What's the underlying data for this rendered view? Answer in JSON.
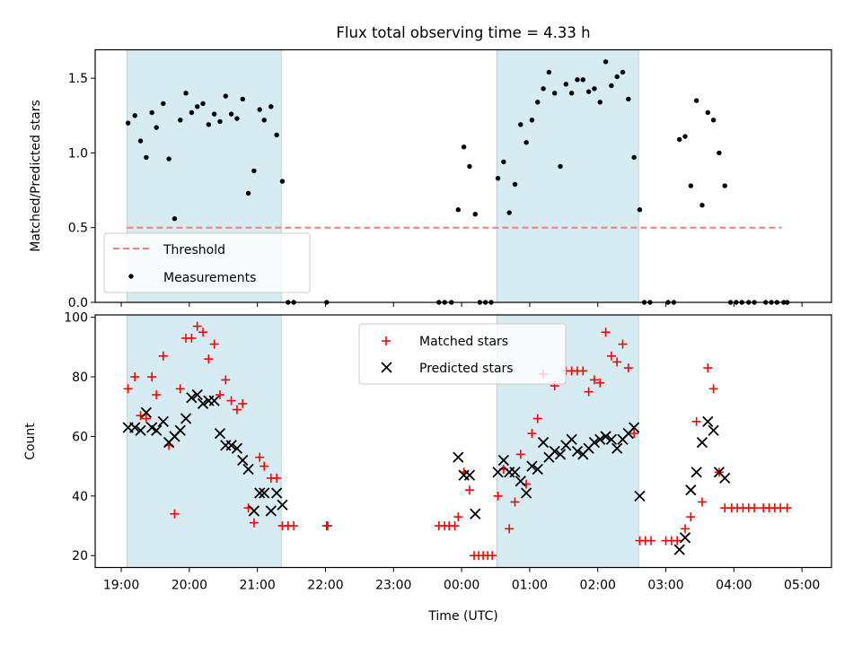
{
  "chart_data": [
    {
      "type": "scatter",
      "panel": "top",
      "title": "Flux total observing time = 4.33 h",
      "xlabel": "",
      "ylabel": "Matched/Predicted stars",
      "xlim": [
        "18:37",
        "05:26"
      ],
      "ylim": [
        0,
        1.69
      ],
      "yticks": [
        0.0,
        0.5,
        1.0,
        1.5
      ],
      "ytick_labels": [
        "0.0",
        "0.5",
        "1.0",
        "1.5"
      ],
      "xticks": [
        "19:00",
        "20:00",
        "21:00",
        "22:00",
        "23:00",
        "00:00",
        "01:00",
        "02:00",
        "03:00",
        "04:00",
        "05:00"
      ],
      "shaded_intervals": [
        [
          "19:05",
          "21:21"
        ],
        [
          "00:31",
          "02:36"
        ]
      ],
      "shade_color": "#add8e6",
      "legend_position": "lower-left",
      "threshold": {
        "name": "Threshold",
        "value": 0.5,
        "start": "19:05",
        "end": "04:42",
        "color": "#f08080"
      },
      "measurements": {
        "name": "Measurements",
        "color": "#000000",
        "points": [
          [
            "19:06",
            1.2
          ],
          [
            "19:12",
            1.25
          ],
          [
            "19:17",
            1.08
          ],
          [
            "19:22",
            0.97
          ],
          [
            "19:27",
            1.27
          ],
          [
            "19:31",
            1.17
          ],
          [
            "19:37",
            1.33
          ],
          [
            "19:42",
            0.96
          ],
          [
            "19:47",
            0.56
          ],
          [
            "19:52",
            1.22
          ],
          [
            "19:57",
            1.4
          ],
          [
            "20:02",
            1.27
          ],
          [
            "20:07",
            1.31
          ],
          [
            "20:12",
            1.33
          ],
          [
            "20:17",
            1.19
          ],
          [
            "20:22",
            1.26
          ],
          [
            "20:27",
            1.21
          ],
          [
            "20:32",
            1.38
          ],
          [
            "20:37",
            1.26
          ],
          [
            "20:42",
            1.23
          ],
          [
            "20:47",
            1.36
          ],
          [
            "20:52",
            0.73
          ],
          [
            "20:57",
            0.88
          ],
          [
            "21:02",
            1.29
          ],
          [
            "21:06",
            1.22
          ],
          [
            "21:12",
            1.31
          ],
          [
            "21:17",
            1.12
          ],
          [
            "21:22",
            0.81
          ],
          [
            "21:27",
            0.0
          ],
          [
            "21:32",
            0.0
          ],
          [
            "22:01",
            0.0
          ],
          [
            "23:40",
            0.0
          ],
          [
            "23:45",
            0.0
          ],
          [
            "23:51",
            0.0
          ],
          [
            "23:57",
            0.62
          ],
          [
            "00:02",
            1.04
          ],
          [
            "00:07",
            0.91
          ],
          [
            "00:12",
            0.59
          ],
          [
            "00:16",
            0.0
          ],
          [
            "00:21",
            0.0
          ],
          [
            "00:26",
            0.0
          ],
          [
            "00:32",
            0.83
          ],
          [
            "00:37",
            0.94
          ],
          [
            "00:42",
            0.6
          ],
          [
            "00:47",
            0.79
          ],
          [
            "00:52",
            1.19
          ],
          [
            "00:57",
            1.07
          ],
          [
            "01:02",
            1.22
          ],
          [
            "01:07",
            1.34
          ],
          [
            "01:12",
            1.43
          ],
          [
            "01:17",
            1.54
          ],
          [
            "01:22",
            1.4
          ],
          [
            "01:27",
            0.91
          ],
          [
            "01:32",
            1.46
          ],
          [
            "01:37",
            1.4
          ],
          [
            "01:42",
            1.49
          ],
          [
            "01:47",
            1.49
          ],
          [
            "01:52",
            1.41
          ],
          [
            "01:57",
            1.43
          ],
          [
            "02:02",
            1.34
          ],
          [
            "02:07",
            1.61
          ],
          [
            "02:12",
            1.45
          ],
          [
            "02:17",
            1.51
          ],
          [
            "02:22",
            1.54
          ],
          [
            "02:27",
            1.36
          ],
          [
            "02:32",
            0.97
          ],
          [
            "02:37",
            0.62
          ],
          [
            "02:41",
            0.0
          ],
          [
            "02:46",
            0.0
          ],
          [
            "03:02",
            0.0
          ],
          [
            "03:07",
            0.0
          ],
          [
            "03:12",
            1.09
          ],
          [
            "03:17",
            1.11
          ],
          [
            "03:22",
            0.78
          ],
          [
            "03:27",
            1.35
          ],
          [
            "03:32",
            0.65
          ],
          [
            "03:37",
            1.27
          ],
          [
            "03:42",
            1.22
          ],
          [
            "03:47",
            1.0
          ],
          [
            "03:52",
            0.78
          ],
          [
            "03:57",
            0.0
          ],
          [
            "04:02",
            0.0
          ],
          [
            "04:07",
            0.0
          ],
          [
            "04:13",
            0.0
          ],
          [
            "04:18",
            0.0
          ],
          [
            "04:28",
            0.0
          ],
          [
            "04:33",
            0.0
          ],
          [
            "04:38",
            0.0
          ],
          [
            "04:44",
            0.0
          ],
          [
            "04:47",
            0.0
          ]
        ]
      }
    },
    {
      "type": "scatter",
      "panel": "bottom",
      "title": "",
      "xlabel": "Time (UTC)",
      "ylabel": "Count",
      "xlim": [
        "18:37",
        "05:26"
      ],
      "ylim": [
        16,
        100.8
      ],
      "yticks": [
        20,
        40,
        60,
        80,
        100
      ],
      "ytick_labels": [
        "20",
        "40",
        "60",
        "80",
        "100"
      ],
      "xticks": [
        "19:00",
        "20:00",
        "21:00",
        "22:00",
        "23:00",
        "00:00",
        "01:00",
        "02:00",
        "03:00",
        "04:00",
        "05:00"
      ],
      "xtick_labels": [
        "19:00",
        "20:00",
        "21:00",
        "22:00",
        "23:00",
        "00:00",
        "01:00",
        "02:00",
        "03:00",
        "04:00",
        "05:00"
      ],
      "shaded_intervals": [
        [
          "19:05",
          "21:21"
        ],
        [
          "00:31",
          "02:36"
        ]
      ],
      "shade_color": "#add8e6",
      "legend_position": "upper-center",
      "series": [
        {
          "name": "Matched stars",
          "marker": "+",
          "color": "#ff0000",
          "points": [
            [
              "19:06",
              76
            ],
            [
              "19:12",
              80
            ],
            [
              "19:17",
              67
            ],
            [
              "19:22",
              66
            ],
            [
              "19:27",
              80
            ],
            [
              "19:31",
              74
            ],
            [
              "19:37",
              87
            ],
            [
              "19:42",
              57
            ],
            [
              "19:47",
              34
            ],
            [
              "19:52",
              76
            ],
            [
              "19:57",
              93
            ],
            [
              "20:02",
              93
            ],
            [
              "20:07",
              97
            ],
            [
              "20:12",
              95
            ],
            [
              "20:17",
              86
            ],
            [
              "20:22",
              91
            ],
            [
              "20:27",
              74
            ],
            [
              "20:32",
              79
            ],
            [
              "20:37",
              72
            ],
            [
              "20:42",
              69
            ],
            [
              "20:47",
              71
            ],
            [
              "20:52",
              36
            ],
            [
              "20:57",
              31
            ],
            [
              "21:02",
              53
            ],
            [
              "21:06",
              50
            ],
            [
              "21:12",
              46
            ],
            [
              "21:17",
              46
            ],
            [
              "21:22",
              30
            ],
            [
              "21:27",
              30
            ],
            [
              "21:32",
              30
            ],
            [
              "22:01",
              30
            ],
            [
              "22:02",
              30
            ],
            [
              "23:40",
              30
            ],
            [
              "23:45",
              30
            ],
            [
              "23:49",
              30
            ],
            [
              "23:54",
              30
            ],
            [
              "23:57",
              33
            ],
            [
              "00:02",
              48
            ],
            [
              "00:07",
              42
            ],
            [
              "00:11",
              20
            ],
            [
              "00:15",
              20
            ],
            [
              "00:19",
              20
            ],
            [
              "00:23",
              20
            ],
            [
              "00:27",
              20
            ],
            [
              "00:32",
              40
            ],
            [
              "00:37",
              49
            ],
            [
              "00:42",
              29
            ],
            [
              "00:47",
              38
            ],
            [
              "00:52",
              54
            ],
            [
              "00:57",
              44
            ],
            [
              "01:02",
              61
            ],
            [
              "01:07",
              66
            ],
            [
              "01:12",
              81
            ],
            [
              "01:22",
              77
            ],
            [
              "01:32",
              82
            ],
            [
              "01:37",
              82
            ],
            [
              "01:42",
              82
            ],
            [
              "01:47",
              82
            ],
            [
              "01:52",
              75
            ],
            [
              "01:57",
              79
            ],
            [
              "02:02",
              78
            ],
            [
              "02:07",
              95
            ],
            [
              "02:12",
              87
            ],
            [
              "02:17",
              85
            ],
            [
              "02:22",
              91
            ],
            [
              "02:27",
              83
            ],
            [
              "02:32",
              61
            ],
            [
              "02:37",
              25
            ],
            [
              "02:42",
              25
            ],
            [
              "02:47",
              25
            ],
            [
              "03:00",
              25
            ],
            [
              "03:05",
              25
            ],
            [
              "03:10",
              25
            ],
            [
              "03:17",
              29
            ],
            [
              "03:22",
              33
            ],
            [
              "03:27",
              65
            ],
            [
              "03:32",
              38
            ],
            [
              "03:37",
              83
            ],
            [
              "03:42",
              76
            ],
            [
              "03:47",
              48
            ],
            [
              "03:52",
              36
            ],
            [
              "03:58",
              36
            ],
            [
              "04:03",
              36
            ],
            [
              "04:08",
              36
            ],
            [
              "04:13",
              36
            ],
            [
              "04:18",
              36
            ],
            [
              "04:26",
              36
            ],
            [
              "04:31",
              36
            ],
            [
              "04:36",
              36
            ],
            [
              "04:41",
              36
            ],
            [
              "04:47",
              36
            ]
          ]
        },
        {
          "name": "Predicted stars",
          "marker": "x",
          "color": "#000000",
          "points": [
            [
              "19:06",
              63
            ],
            [
              "19:12",
              63
            ],
            [
              "19:17",
              62
            ],
            [
              "19:22",
              68
            ],
            [
              "19:27",
              63
            ],
            [
              "19:31",
              62
            ],
            [
              "19:37",
              65
            ],
            [
              "19:42",
              58
            ],
            [
              "19:47",
              60
            ],
            [
              "19:52",
              62
            ],
            [
              "19:57",
              66
            ],
            [
              "20:02",
              73
            ],
            [
              "20:07",
              74
            ],
            [
              "20:12",
              71
            ],
            [
              "20:17",
              72
            ],
            [
              "20:22",
              72
            ],
            [
              "20:27",
              61
            ],
            [
              "20:32",
              57
            ],
            [
              "20:37",
              57
            ],
            [
              "20:42",
              56
            ],
            [
              "20:47",
              52
            ],
            [
              "20:52",
              49
            ],
            [
              "20:57",
              35
            ],
            [
              "21:02",
              41
            ],
            [
              "21:06",
              41
            ],
            [
              "21:12",
              35
            ],
            [
              "21:17",
              41
            ],
            [
              "21:22",
              37
            ],
            [
              "23:57",
              53
            ],
            [
              "00:02",
              47
            ],
            [
              "00:07",
              47
            ],
            [
              "00:12",
              34
            ],
            [
              "00:32",
              48
            ],
            [
              "00:37",
              52
            ],
            [
              "00:42",
              48
            ],
            [
              "00:47",
              48
            ],
            [
              "00:52",
              45
            ],
            [
              "00:57",
              41
            ],
            [
              "01:02",
              50
            ],
            [
              "01:07",
              49
            ],
            [
              "01:12",
              58
            ],
            [
              "01:17",
              53
            ],
            [
              "01:22",
              55
            ],
            [
              "01:27",
              54
            ],
            [
              "01:32",
              57
            ],
            [
              "01:37",
              59
            ],
            [
              "01:42",
              55
            ],
            [
              "01:47",
              54
            ],
            [
              "01:52",
              56
            ],
            [
              "01:57",
              58
            ],
            [
              "02:02",
              59
            ],
            [
              "02:07",
              60
            ],
            [
              "02:12",
              59
            ],
            [
              "02:17",
              56
            ],
            [
              "02:22",
              59
            ],
            [
              "02:27",
              61
            ],
            [
              "02:32",
              63
            ],
            [
              "02:37",
              40
            ],
            [
              "03:12",
              22
            ],
            [
              "03:17",
              26
            ],
            [
              "03:22",
              42
            ],
            [
              "03:27",
              48
            ],
            [
              "03:32",
              58
            ],
            [
              "03:37",
              65
            ],
            [
              "03:42",
              62
            ],
            [
              "03:47",
              48
            ],
            [
              "03:52",
              46
            ]
          ]
        }
      ]
    }
  ]
}
